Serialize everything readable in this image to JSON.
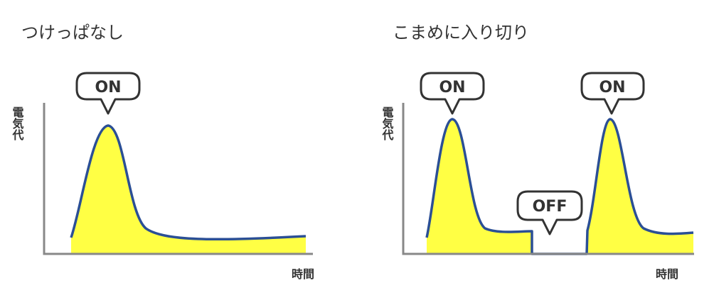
{
  "left": {
    "title": "つけっぱなし",
    "y_label": "電気代",
    "x_label": "時間",
    "callouts": [
      "ON"
    ]
  },
  "right": {
    "title": "こまめに入り切り",
    "y_label": "電気代",
    "x_label": "時間",
    "callouts": [
      "ON",
      "OFF",
      "ON"
    ]
  }
}
